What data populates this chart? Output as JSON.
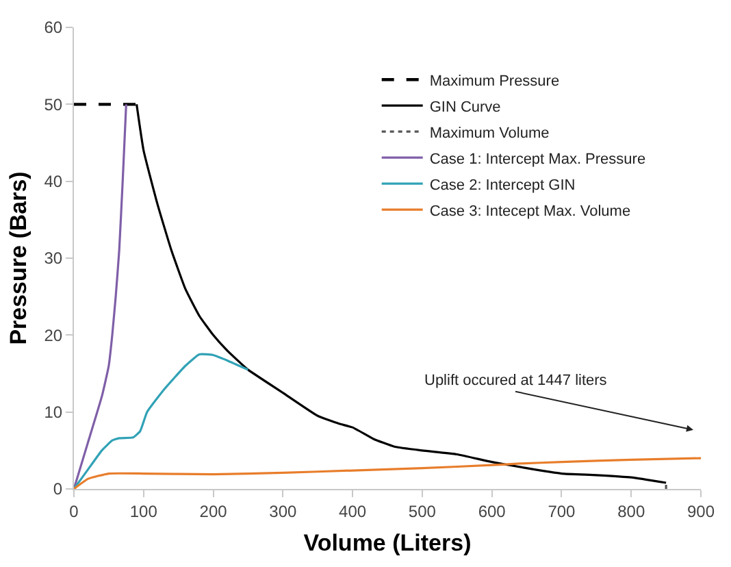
{
  "chart_data": {
    "type": "line",
    "xlabel": "Volume (Liters)",
    "ylabel": "Pressure (Bars)",
    "xlim": [
      0,
      900
    ],
    "xticks": [
      0,
      100,
      200,
      300,
      400,
      500,
      600,
      700,
      800,
      900
    ],
    "ylim": [
      0,
      60
    ],
    "yticks": [
      0,
      10,
      20,
      30,
      40,
      50,
      60
    ],
    "legend": "top right",
    "marker": "none",
    "series": [
      {
        "name": "Maximum Pressure",
        "color": "#000000",
        "line_style": "dashed",
        "x": [
          0,
          90
        ],
        "values": [
          50,
          50
        ]
      },
      {
        "name": "GIN Curve",
        "color": "#000000",
        "line_style": "solid",
        "x": [
          90,
          100,
          120,
          140,
          160,
          180,
          200,
          220,
          250,
          300,
          350,
          380,
          400,
          430,
          460,
          500,
          550,
          600,
          650,
          700,
          750,
          800,
          850
        ],
        "values": [
          50,
          44,
          37,
          31,
          26,
          22.5,
          20,
          18,
          15.5,
          12.5,
          9.5,
          8.5,
          8,
          6.5,
          5.5,
          5,
          4.5,
          3.5,
          2.7,
          2,
          1.8,
          1.5,
          0.8
        ]
      },
      {
        "name": "Maximum Volume",
        "color": "#555555",
        "line_style": "dotted",
        "x": [
          850,
          850
        ],
        "values": [
          0,
          0.8
        ]
      },
      {
        "name": "Case 1: Intercept Max. Pressure",
        "color": "#7f5fa8",
        "line_style": "solid",
        "x": [
          0,
          20,
          40,
          50,
          55,
          60,
          65,
          70,
          75
        ],
        "values": [
          0,
          6,
          12,
          16,
          20,
          25,
          31,
          40,
          50
        ]
      },
      {
        "name": "Case 2: Intercept GIN",
        "color": "#31a2b6",
        "line_style": "solid",
        "x": [
          0,
          20,
          40,
          55,
          65,
          85,
          95,
          105,
          130,
          160,
          180,
          200,
          220,
          250
        ],
        "values": [
          0,
          2.5,
          5,
          6.3,
          6.6,
          6.7,
          7.5,
          10,
          13,
          16,
          17.5,
          17.4,
          16.7,
          15.5
        ]
      },
      {
        "name": "Case 3: Intecept Max. Volume",
        "color": "#e87d2b",
        "line_style": "solid",
        "x": [
          0,
          20,
          50,
          100,
          200,
          300,
          400,
          500,
          600,
          640,
          700,
          800,
          900
        ],
        "values": [
          0,
          1.3,
          2,
          2,
          1.9,
          2.1,
          2.4,
          2.7,
          3.1,
          3.3,
          3.5,
          3.8,
          4
        ]
      }
    ],
    "annotations": [
      "Uplift occured at 1447 liters"
    ]
  }
}
